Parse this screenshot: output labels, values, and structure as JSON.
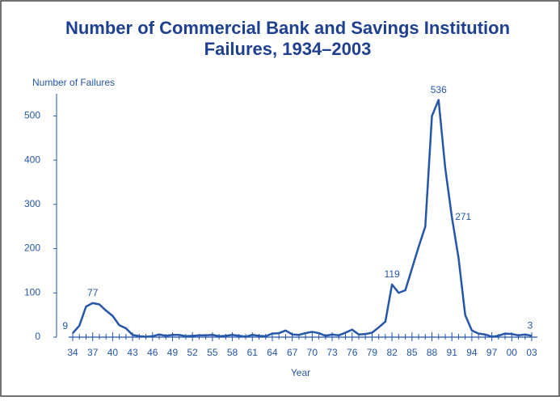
{
  "chart_data": {
    "type": "line",
    "title": "Number of Commercial Bank and Savings Institution",
    "title_line2": "Failures, 1934–2003",
    "y_label": "Number of Failures",
    "x_label": "Year",
    "categories": [
      "34",
      null,
      null,
      "37",
      null,
      null,
      "40",
      null,
      null,
      "43",
      null,
      null,
      "46",
      null,
      null,
      "49",
      null,
      null,
      "52",
      null,
      null,
      "55",
      null,
      null,
      "58",
      null,
      null,
      "61",
      null,
      null,
      "64",
      null,
      null,
      "67",
      null,
      null,
      "70",
      null,
      null,
      "73",
      null,
      null,
      "76",
      null,
      null,
      "79",
      null,
      null,
      "82",
      null,
      null,
      "85",
      null,
      null,
      "88",
      null,
      null,
      "91",
      null,
      null,
      "94",
      null,
      null,
      "97",
      null,
      null,
      "00",
      null,
      null,
      "03"
    ],
    "series": [
      {
        "name": "Failures",
        "color": "#2556a8",
        "values": [
          9,
          26,
          69,
          77,
          74,
          60,
          48,
          27,
          20,
          5,
          2,
          1,
          2,
          6,
          3,
          5,
          5,
          2,
          3,
          4,
          4,
          5,
          2,
          3,
          5,
          3,
          1,
          5,
          3,
          2,
          8,
          9,
          15,
          6,
          5,
          9,
          12,
          9,
          3,
          6,
          4,
          10,
          17,
          6,
          7,
          10,
          22,
          35,
          119,
          100,
          106,
          155,
          204,
          250,
          500,
          536,
          382,
          271,
          179,
          50,
          15,
          8,
          6,
          1,
          3,
          8,
          7,
          4,
          6,
          3
        ],
        "value_labels": [
          "9",
          null,
          null,
          "77",
          null,
          null,
          null,
          null,
          null,
          null,
          null,
          null,
          null,
          null,
          null,
          null,
          null,
          null,
          null,
          null,
          null,
          null,
          null,
          null,
          null,
          null,
          null,
          null,
          null,
          null,
          null,
          null,
          null,
          null,
          null,
          null,
          null,
          null,
          null,
          null,
          null,
          null,
          null,
          null,
          null,
          null,
          null,
          null,
          "119",
          null,
          null,
          null,
          null,
          null,
          null,
          "536",
          null,
          "271",
          null,
          null,
          null,
          null,
          null,
          null,
          null,
          null,
          null,
          null,
          null,
          "3"
        ]
      }
    ],
    "ylim": [
      0,
      550
    ],
    "yticks": [
      0,
      100,
      200,
      300,
      400,
      500
    ],
    "grid": false
  }
}
